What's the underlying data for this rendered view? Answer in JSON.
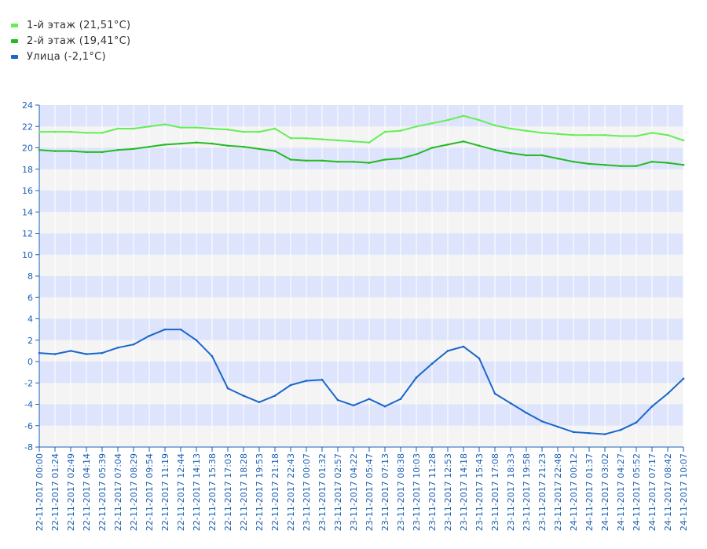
{
  "chart_data": {
    "type": "line",
    "x_ticks": [
      "22-11-2017 00:00",
      "22-11-2017 01:24",
      "22-11-2017 02:49",
      "22-11-2017 04:14",
      "22-11-2017 05:39",
      "22-11-2017 07:04",
      "22-11-2017 08:29",
      "22-11-2017 09:54",
      "22-11-2017 11:19",
      "22-11-2017 12:44",
      "22-11-2017 14:13",
      "22-11-2017 15:38",
      "22-11-2017 17:03",
      "22-11-2017 18:28",
      "22-11-2017 19:53",
      "22-11-2017 21:18",
      "22-11-2017 22:43",
      "23-11-2017 00:07",
      "23-11-2017 01:32",
      "23-11-2017 02:57",
      "23-11-2017 04:22",
      "23-11-2017 05:47",
      "23-11-2017 07:13",
      "23-11-2017 08:38",
      "23-11-2017 10:03",
      "23-11-2017 11:28",
      "23-11-2017 12:53",
      "23-11-2017 14:18",
      "23-11-2017 15:43",
      "23-11-2017 17:08",
      "23-11-2017 18:33",
      "23-11-2017 19:58",
      "23-11-2017 21:23",
      "23-11-2017 22:48",
      "24-11-2017 00:12",
      "24-11-2017 01:37",
      "24-11-2017 03:02",
      "24-11-2017 04:27",
      "24-11-2017 05:52",
      "24-11-2017 07:17",
      "24-11-2017 08:42",
      "24-11-2017 10:07"
    ],
    "ylim": [
      -8,
      24
    ],
    "y_ticks": [
      24,
      22,
      20,
      18,
      16,
      14,
      12,
      10,
      8,
      6,
      4,
      2,
      0,
      -2,
      -4,
      -6,
      -8
    ],
    "grid": true,
    "legend_position": "top-left",
    "series": [
      {
        "name": "1-й этаж (21,51°C)",
        "color": "#66ee55",
        "values": [
          21.5,
          21.5,
          21.5,
          21.4,
          21.4,
          21.8,
          21.8,
          22.0,
          22.2,
          21.9,
          21.9,
          21.8,
          21.7,
          21.5,
          21.5,
          21.8,
          20.9,
          20.9,
          20.8,
          20.7,
          20.6,
          20.5,
          21.5,
          21.6,
          22.0,
          22.3,
          22.6,
          23.0,
          22.6,
          22.1,
          21.8,
          21.6,
          21.4,
          21.3,
          21.2,
          21.2,
          21.2,
          21.1,
          21.1,
          21.4,
          21.2,
          20.7
        ]
      },
      {
        "name": "2-й этаж (19,41°C)",
        "color": "#22bb22",
        "values": [
          19.8,
          19.7,
          19.7,
          19.6,
          19.6,
          19.8,
          19.9,
          20.1,
          20.3,
          20.4,
          20.5,
          20.4,
          20.2,
          20.1,
          19.9,
          19.7,
          18.9,
          18.8,
          18.8,
          18.7,
          18.7,
          18.6,
          18.9,
          19.0,
          19.4,
          20.0,
          20.3,
          20.6,
          20.2,
          19.8,
          19.5,
          19.3,
          19.3,
          19.0,
          18.7,
          18.5,
          18.4,
          18.3,
          18.3,
          18.7,
          18.6,
          18.4
        ]
      },
      {
        "name": "Улица (-2,1°C)",
        "color": "#1a66cc",
        "values": [
          0.8,
          0.7,
          1.0,
          0.7,
          0.8,
          1.3,
          1.6,
          2.4,
          3.0,
          3.0,
          2.0,
          0.5,
          -2.5,
          -3.2,
          -3.8,
          -3.2,
          -2.2,
          -1.8,
          -1.7,
          -3.6,
          -4.1,
          -3.5,
          -4.2,
          -3.5,
          -1.5,
          -0.2,
          1.0,
          1.4,
          0.3,
          -3.0,
          -3.9,
          -4.8,
          -5.6,
          -6.1,
          -6.6,
          -6.7,
          -6.8,
          -6.4,
          -5.7,
          -4.2,
          -3.0,
          -1.6
        ]
      }
    ]
  }
}
